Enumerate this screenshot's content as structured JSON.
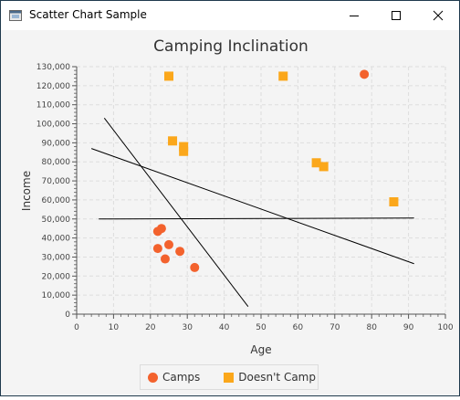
{
  "window": {
    "title": "Scatter Chart Sample",
    "icon": "java-app-icon"
  },
  "controls": {
    "minimize_icon": "minimize-icon",
    "maximize_icon": "maximize-icon",
    "close_icon": "close-icon"
  },
  "colors": {
    "camps": "#f3622d",
    "doesnt_camp": "#fba71b",
    "lines": "#000000",
    "plot_background": "#f4f4f4",
    "gridline": "#dddddd"
  },
  "chart_data": {
    "type": "scatter",
    "title": "Camping Inclination",
    "xlabel": "Age",
    "ylabel": "Income",
    "xlim": [
      0,
      100
    ],
    "ylim": [
      0,
      130000
    ],
    "x_ticks": [
      0,
      10,
      20,
      30,
      40,
      50,
      60,
      70,
      80,
      90,
      100
    ],
    "y_ticks": [
      0,
      10000,
      20000,
      30000,
      40000,
      50000,
      60000,
      70000,
      80000,
      90000,
      100000,
      110000,
      120000,
      130000
    ],
    "y_tick_labels": [
      "0",
      "10,000",
      "20,000",
      "30,000",
      "40,000",
      "50,000",
      "60,000",
      "70,000",
      "80,000",
      "90,000",
      "100,000",
      "110,000",
      "120,000",
      "130,000"
    ],
    "grid": true,
    "legend_position": "bottom",
    "series": [
      {
        "name": "Camps",
        "marker": "circle",
        "points": [
          [
            22,
            43500
          ],
          [
            23,
            45000
          ],
          [
            22,
            34500
          ],
          [
            25,
            36500
          ],
          [
            28,
            33000
          ],
          [
            24,
            29000
          ],
          [
            32,
            24500
          ],
          [
            78,
            126000
          ]
        ]
      },
      {
        "name": "Doesn't Camp",
        "marker": "square",
        "points": [
          [
            25,
            125000
          ],
          [
            56,
            125000
          ],
          [
            26,
            91000
          ],
          [
            29,
            88000
          ],
          [
            29,
            85500
          ],
          [
            65,
            79500
          ],
          [
            67,
            77500
          ],
          [
            86,
            59000
          ]
        ]
      }
    ],
    "lines": [
      {
        "x1": 7.5,
        "y1": 103000,
        "x2": 46.5,
        "y2": 4000
      },
      {
        "x1": 4,
        "y1": 87000,
        "x2": 91.5,
        "y2": 26500
      },
      {
        "x1": 6,
        "y1": 50000,
        "x2": 91.5,
        "y2": 50500
      }
    ]
  }
}
